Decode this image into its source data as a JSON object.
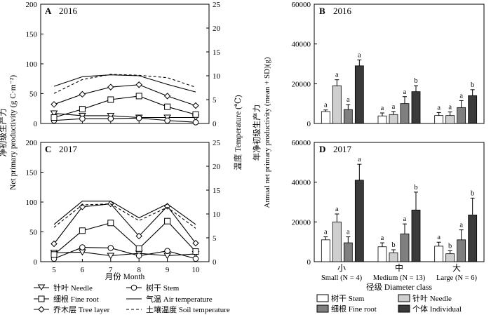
{
  "chart_data": [
    {
      "type": "line",
      "panel": "A",
      "year": "2016",
      "x": [
        5,
        6,
        7,
        8,
        9,
        10
      ],
      "ylim": [
        0,
        200
      ],
      "y2lim": [
        0,
        25
      ],
      "yticks": [
        0,
        50,
        100,
        150,
        200
      ],
      "y2ticks": [
        0,
        5,
        10,
        15,
        20,
        25
      ],
      "series": [
        {
          "key": "needle",
          "axis": "left",
          "values": [
            17,
            13,
            13,
            10,
            10,
            10
          ]
        },
        {
          "key": "stem",
          "axis": "left",
          "values": [
            5,
            8,
            8,
            9,
            5,
            2
          ]
        },
        {
          "key": "fine_root",
          "axis": "left",
          "values": [
            10,
            24,
            40,
            46,
            28,
            15
          ]
        },
        {
          "key": "tree_layer",
          "axis": "left",
          "values": [
            32,
            49,
            61,
            65,
            46,
            30
          ]
        },
        {
          "key": "air_temp",
          "axis": "right",
          "values": [
            7.8,
            9.8,
            10.2,
            10.0,
            8.2,
            6.6
          ]
        },
        {
          "key": "soil_temp",
          "axis": "right",
          "values": [
            6.3,
            9.2,
            10.3,
            10.1,
            9.6,
            7.6
          ]
        }
      ]
    },
    {
      "type": "line",
      "panel": "C",
      "year": "2017",
      "x": [
        5,
        6,
        7,
        8,
        9,
        10
      ],
      "ylim": [
        0,
        200
      ],
      "y2lim": [
        0,
        25
      ],
      "yticks": [
        0,
        50,
        100,
        150,
        200
      ],
      "y2ticks": [
        0,
        5,
        10,
        15,
        20,
        25
      ],
      "series": [
        {
          "key": "needle",
          "axis": "left",
          "values": [
            15,
            16,
            10,
            14,
            10,
            13
          ]
        },
        {
          "key": "stem",
          "axis": "left",
          "values": [
            5,
            24,
            23,
            10,
            18,
            5
          ]
        },
        {
          "key": "fine_root",
          "axis": "left",
          "values": [
            12,
            52,
            65,
            22,
            68,
            17
          ]
        },
        {
          "key": "tree_layer",
          "axis": "left",
          "values": [
            30,
            92,
            97,
            43,
            93,
            31
          ]
        },
        {
          "key": "air_temp",
          "axis": "right",
          "values": [
            7.8,
            12.7,
            12.7,
            9.2,
            12.1,
            7.8
          ]
        },
        {
          "key": "soil_temp",
          "axis": "right",
          "values": [
            7.2,
            11.9,
            12.1,
            8.6,
            11.4,
            7.0
          ]
        }
      ]
    },
    {
      "type": "bar",
      "panel": "B",
      "year": "2016",
      "ylim": [
        0,
        60000
      ],
      "yticks": [
        0,
        20000,
        40000,
        60000
      ],
      "groups": [
        {
          "stem": [
            6000,
            800,
            "a"
          ],
          "needle": [
            19000,
            3000,
            "a"
          ],
          "fine_root": [
            7000,
            2500,
            "a"
          ],
          "individual": [
            29000,
            3000,
            "a"
          ]
        },
        {
          "stem": [
            3800,
            1500,
            "a"
          ],
          "needle": [
            4500,
            1500,
            "a"
          ],
          "fine_root": [
            10000,
            3500,
            "a"
          ],
          "individual": [
            16000,
            3000,
            "b"
          ]
        },
        {
          "stem": [
            4000,
            1500,
            "a"
          ],
          "needle": [
            4000,
            1800,
            "a"
          ],
          "fine_root": [
            8000,
            3500,
            "a"
          ],
          "individual": [
            14000,
            3000,
            "b"
          ]
        }
      ]
    },
    {
      "type": "bar",
      "panel": "D",
      "year": "2017",
      "ylim": [
        0,
        60000
      ],
      "yticks": [
        0,
        20000,
        40000,
        60000
      ],
      "groups": [
        {
          "stem": [
            11000,
            1500,
            "a"
          ],
          "needle": [
            20000,
            4000,
            "a"
          ],
          "fine_root": [
            9500,
            3000,
            "a"
          ],
          "individual": [
            41000,
            8000,
            "a"
          ]
        },
        {
          "stem": [
            7500,
            2000,
            "a"
          ],
          "needle": [
            4500,
            1500,
            "b"
          ],
          "fine_root": [
            14000,
            5000,
            "a"
          ],
          "individual": [
            26000,
            9000,
            "b"
          ]
        },
        {
          "stem": [
            7800,
            2000,
            "a"
          ],
          "needle": [
            4000,
            1500,
            "b"
          ],
          "fine_root": [
            11000,
            5000,
            "a"
          ],
          "individual": [
            23500,
            8500,
            "b"
          ]
        }
      ]
    }
  ],
  "text": {
    "panel_a": "A",
    "panel_b": "B",
    "panel_c": "C",
    "panel_d": "D",
    "year_2016": "2016",
    "year_2017": "2017",
    "left_ylabel_cn": "净初级生产力",
    "left_ylabel_en": "Net primary productivity (g C·m⁻²)",
    "right_ylabel": "温度 Temperature (℃)",
    "xlabel": "月份 Month",
    "bar_ylabel_cn": "年净初级生产力",
    "bar_ylabel_en": "Annual net primary productivity (mean + SD)(g)",
    "bar_xlabel": "径级 Diameter class",
    "class_small_cn": "小",
    "class_medium_cn": "中",
    "class_large_cn": "大",
    "class_small": "Small (N = 4)",
    "class_medium": "Medium (N = 13)",
    "class_large": "Large (N = 6)",
    "leg_needle": "针叶 Needle",
    "leg_stem": "树干 Stem",
    "leg_fine_root": "细根 Fine root",
    "leg_air": "气温 Air temperature",
    "leg_tree": "乔木层 Tree layer",
    "leg_soil": "土壤温度 Soil temperature",
    "bleg_stem": "树干 Stem",
    "bleg_needle": "针叶  Needle",
    "bleg_fine_root": "细根 Fine root",
    "bleg_individual": "个体 Individual"
  },
  "colors": {
    "stem": "#ffffff",
    "needle": "#cfcfcf",
    "fine_root": "#7f7f7f",
    "individual": "#3a3a3a",
    "line": "#000000"
  }
}
